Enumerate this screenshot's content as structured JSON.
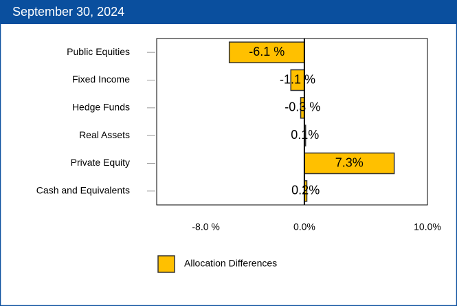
{
  "header": {
    "title": "September 30, 2024"
  },
  "chart_data": {
    "type": "hbar",
    "categories": [
      "Public Equities",
      "Fixed Income",
      "Hedge Funds",
      "Real Assets",
      "Private Equity",
      "Cash and Equivalents"
    ],
    "series": [
      {
        "name": "Allocation Differences",
        "color": "#ffc000",
        "values": [
          -6.1,
          -1.1,
          -0.3,
          0.1,
          7.3,
          0.2
        ],
        "value_labels": [
          "-6.1 %",
          "-1.1 %",
          "-0.3 %",
          "0.1%",
          "7.3%",
          "0.2%"
        ]
      }
    ],
    "xlim": [
      -12,
      10
    ],
    "xticks": [
      {
        "value": -8,
        "label": "-8.0 %"
      },
      {
        "value": 0,
        "label": "0.0%"
      },
      {
        "value": 10,
        "label": "10.0%"
      }
    ],
    "legend": "bottom-left"
  }
}
